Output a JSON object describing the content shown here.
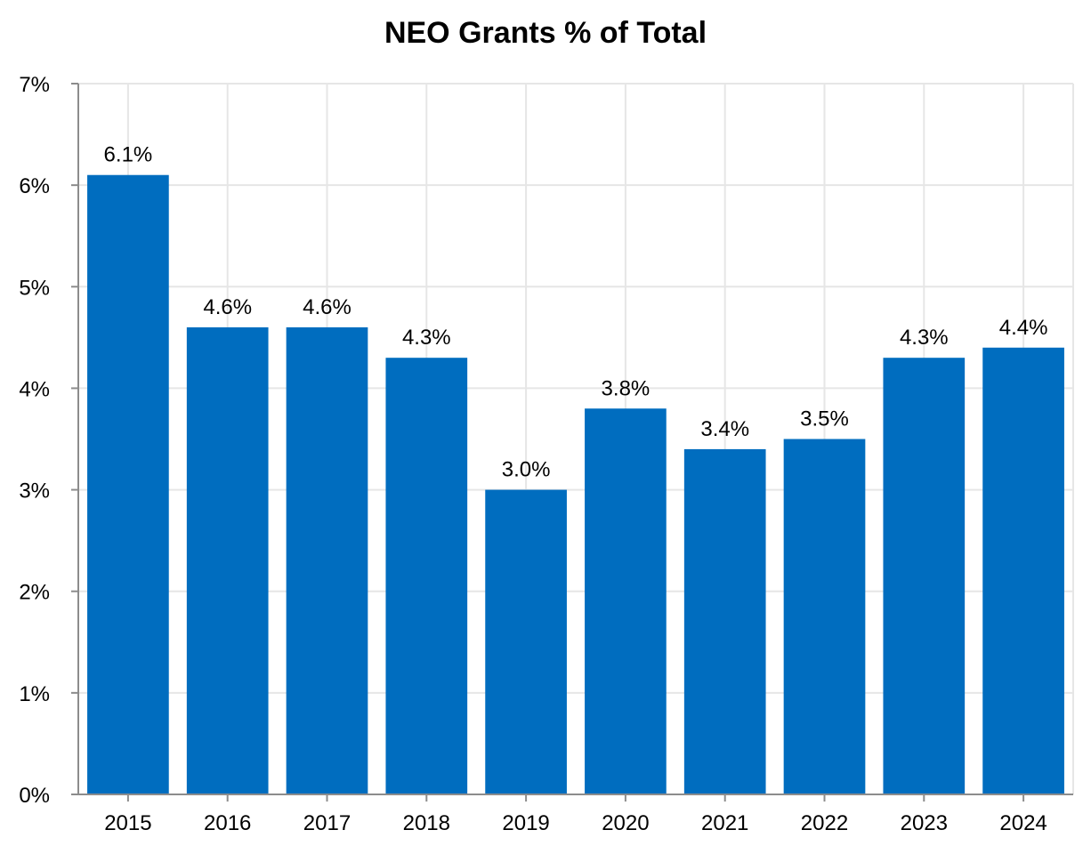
{
  "chart_data": {
    "type": "bar",
    "title": "NEO Grants % of Total",
    "xlabel": "",
    "ylabel": "",
    "categories": [
      "2015",
      "2016",
      "2017",
      "2018",
      "2019",
      "2020",
      "2021",
      "2022",
      "2023",
      "2024"
    ],
    "values": [
      6.1,
      4.6,
      4.6,
      4.3,
      3.0,
      3.8,
      3.4,
      3.5,
      4.3,
      4.4
    ],
    "value_labels": [
      "6.1%",
      "4.6%",
      "4.6%",
      "4.3%",
      "3.0%",
      "3.8%",
      "3.4%",
      "3.5%",
      "4.3%",
      "4.4%"
    ],
    "ylim": [
      0,
      7
    ],
    "y_ticks": [
      0,
      1,
      2,
      3,
      4,
      5,
      6,
      7
    ],
    "y_tick_labels": [
      "0%",
      "1%",
      "2%",
      "3%",
      "4%",
      "5%",
      "6%",
      "7%"
    ],
    "grid": true,
    "bar_color": "#006dbf"
  }
}
